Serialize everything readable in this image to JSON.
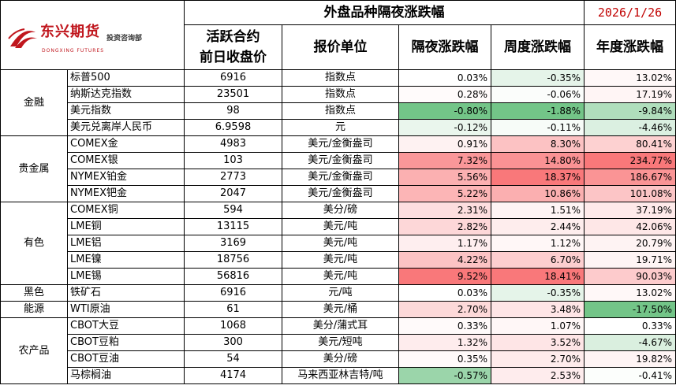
{
  "header": {
    "title": "外盘品种隔夜涨跌幅",
    "date": "2026/1/26",
    "col_price": "活跃合约\n前日收盘价",
    "col_price_l1": "活跃合约",
    "col_price_l2": "前日收盘价",
    "col_unit": "报价单位",
    "col_overnight": "隔夜涨跌幅",
    "col_week": "周度涨跌幅",
    "col_year": "年度涨跌幅"
  },
  "logo": {
    "name_cn": "东兴期货",
    "name_en": "DONGXING FUTURES",
    "dept": "投资咨询部"
  },
  "colors": {
    "positive": "#f8696b",
    "negative": "#63be7b",
    "neutral": "#ffffff",
    "date_red": "#c00000",
    "logo_red": "#c0161d"
  },
  "rows": [
    {
      "category": "金融",
      "name": "标普500",
      "price": "6916",
      "unit": "指数点",
      "overnight": "0.03%",
      "week": "-0.35%",
      "year": "13.02%"
    },
    {
      "category": "",
      "name": "纳斯达克指数",
      "price": "23501",
      "unit": "指数点",
      "overnight": "0.28%",
      "week": "-0.06%",
      "year": "17.19%"
    },
    {
      "category": "",
      "name": "美元指数",
      "price": "98",
      "unit": "指数点",
      "overnight": "-0.80%",
      "week": "-1.88%",
      "year": "-9.84%"
    },
    {
      "category": "",
      "name": "美元兑离岸人民币",
      "price": "6.9598",
      "unit": "元",
      "overnight": "-0.12%",
      "week": "-0.11%",
      "year": "-4.46%"
    },
    {
      "category": "贵金属",
      "name": "COMEX金",
      "price": "4983",
      "unit": "美元/金衡盎司",
      "overnight": "0.91%",
      "week": "8.30%",
      "year": "80.41%"
    },
    {
      "category": "",
      "name": "COMEX银",
      "price": "103",
      "unit": "美元/金衡盎司",
      "overnight": "7.32%",
      "week": "14.80%",
      "year": "234.77%"
    },
    {
      "category": "",
      "name": "NYMEX铂金",
      "price": "2773",
      "unit": "美元/金衡盎司",
      "overnight": "5.56%",
      "week": "18.37%",
      "year": "186.67%"
    },
    {
      "category": "",
      "name": "NYMEX钯金",
      "price": "2047",
      "unit": "美元/金衡盎司",
      "overnight": "5.22%",
      "week": "10.86%",
      "year": "101.08%"
    },
    {
      "category": "有色",
      "name": "COMEX铜",
      "price": "594",
      "unit": "美分/磅",
      "overnight": "2.31%",
      "week": "1.51%",
      "year": "37.19%"
    },
    {
      "category": "",
      "name": "LME铜",
      "price": "13115",
      "unit": "美元/吨",
      "overnight": "2.82%",
      "week": "2.44%",
      "year": "42.06%"
    },
    {
      "category": "",
      "name": "LME铝",
      "price": "3169",
      "unit": "美元/吨",
      "overnight": "1.17%",
      "week": "1.12%",
      "year": "20.79%"
    },
    {
      "category": "",
      "name": "LME镍",
      "price": "18756",
      "unit": "美元/吨",
      "overnight": "4.22%",
      "week": "6.70%",
      "year": "19.71%"
    },
    {
      "category": "",
      "name": "LME锡",
      "price": "56816",
      "unit": "美元/吨",
      "overnight": "9.52%",
      "week": "18.41%",
      "year": "90.03%"
    },
    {
      "category": "黑色",
      "name": "铁矿石",
      "price": "6916",
      "unit": "元/吨",
      "overnight": "0.03%",
      "week": "-0.35%",
      "year": "13.02%"
    },
    {
      "category": "能源",
      "name": "WTI原油",
      "price": "61",
      "unit": "美元/桶",
      "overnight": "2.70%",
      "week": "3.48%",
      "year": "-17.50%"
    },
    {
      "category": "农产品",
      "name": "CBOT大豆",
      "price": "1068",
      "unit": "美分/蒲式耳",
      "overnight": "0.33%",
      "week": "1.07%",
      "year": "0.33%"
    },
    {
      "category": "",
      "name": "CBOT豆粕",
      "price": "300",
      "unit": "美元/短吨",
      "overnight": "1.32%",
      "week": "3.52%",
      "year": "-4.67%"
    },
    {
      "category": "",
      "name": "CBOT豆油",
      "price": "54",
      "unit": "美分/磅",
      "overnight": "0.35%",
      "week": "2.70%",
      "year": "19.82%"
    },
    {
      "category": "",
      "name": "马棕榈油",
      "price": "4174",
      "unit": "马来西亚林吉特/吨",
      "overnight": "-0.57%",
      "week": "2.53%",
      "year": "-0.41%"
    }
  ],
  "groups": [
    {
      "label": "金融",
      "span": 4
    },
    {
      "label": "贵金属",
      "span": 4
    },
    {
      "label": "有色",
      "span": 5
    },
    {
      "label": "黑色",
      "span": 1
    },
    {
      "label": "能源",
      "span": 1
    },
    {
      "label": "农产品",
      "span": 4
    }
  ]
}
